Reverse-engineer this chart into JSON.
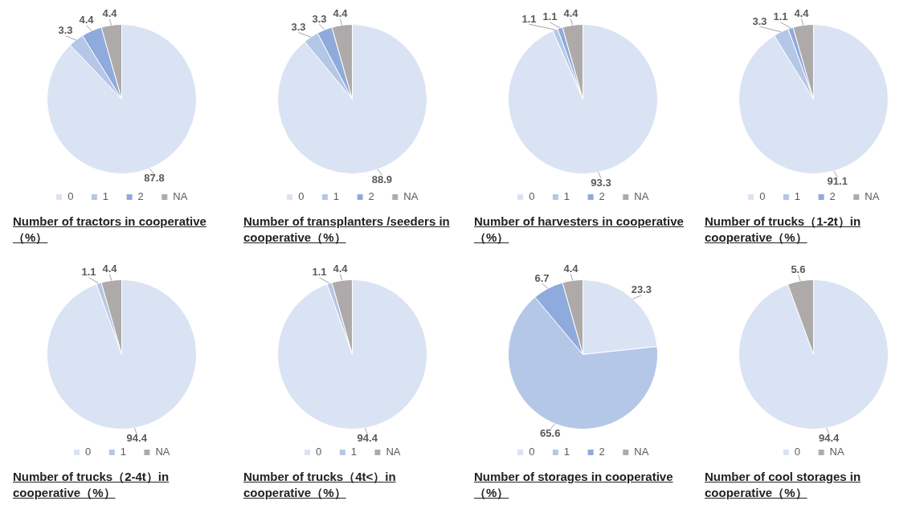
{
  "chart_data": [
    {
      "type": "pie",
      "title": "Number of tractors in cooperative（%）",
      "categories": [
        "0",
        "1",
        "2",
        "NA"
      ],
      "values": [
        87.8,
        3.3,
        4.4,
        4.4
      ],
      "colors": [
        "#dae3f3",
        "#b4c7e7",
        "#8faadc",
        "#aeaaaa"
      ],
      "data_labels": true,
      "legend": "bottom"
    },
    {
      "type": "pie",
      "title": "Number of transplanters /seeders in cooperative（%）",
      "categories": [
        "0",
        "1",
        "2",
        "NA"
      ],
      "values": [
        88.9,
        3.3,
        3.3,
        4.4
      ],
      "colors": [
        "#dae3f3",
        "#b4c7e7",
        "#8faadc",
        "#aeaaaa"
      ],
      "data_labels": true,
      "legend": "bottom"
    },
    {
      "type": "pie",
      "title": "Number of harvesters in cooperative（%）",
      "categories": [
        "0",
        "1",
        "2",
        "NA"
      ],
      "values": [
        93.3,
        1.1,
        1.1,
        4.4
      ],
      "colors": [
        "#dae3f3",
        "#b4c7e7",
        "#8faadc",
        "#aeaaaa"
      ],
      "data_labels": true,
      "legend": "bottom"
    },
    {
      "type": "pie",
      "title": "Number of trucks（1-2t）in cooperative（%）",
      "categories": [
        "0",
        "1",
        "2",
        "NA"
      ],
      "values": [
        91.1,
        3.3,
        1.1,
        4.4
      ],
      "colors": [
        "#dae3f3",
        "#b4c7e7",
        "#8faadc",
        "#aeaaaa"
      ],
      "data_labels": true,
      "legend": "bottom"
    },
    {
      "type": "pie",
      "title": "Number of trucks（2-4t）in cooperative（%）",
      "categories": [
        "0",
        "1",
        "NA"
      ],
      "values": [
        94.4,
        1.1,
        4.4
      ],
      "colors": [
        "#dae3f3",
        "#b4c7e7",
        "#aeaaaa"
      ],
      "data_labels": true,
      "legend": "bottom"
    },
    {
      "type": "pie",
      "title": "Number of trucks（4t<）in cooperative（%）",
      "categories": [
        "0",
        "1",
        "NA"
      ],
      "values": [
        94.4,
        1.1,
        4.4
      ],
      "colors": [
        "#dae3f3",
        "#b4c7e7",
        "#aeaaaa"
      ],
      "data_labels": true,
      "legend": "bottom"
    },
    {
      "type": "pie",
      "title": "Number of storages in cooperative（%）",
      "categories": [
        "0",
        "1",
        "2",
        "NA"
      ],
      "values": [
        23.3,
        65.6,
        6.7,
        4.4
      ],
      "colors": [
        "#dae3f3",
        "#b4c7e7",
        "#8faadc",
        "#aeaaaa"
      ],
      "data_labels": true,
      "legend": "bottom"
    },
    {
      "type": "pie",
      "title": "Number of cool storages in cooperative（%）",
      "categories": [
        "0",
        "NA"
      ],
      "values": [
        94.4,
        5.6
      ],
      "colors": [
        "#dae3f3",
        "#aeaaaa"
      ],
      "data_labels": true,
      "legend": "bottom"
    }
  ]
}
